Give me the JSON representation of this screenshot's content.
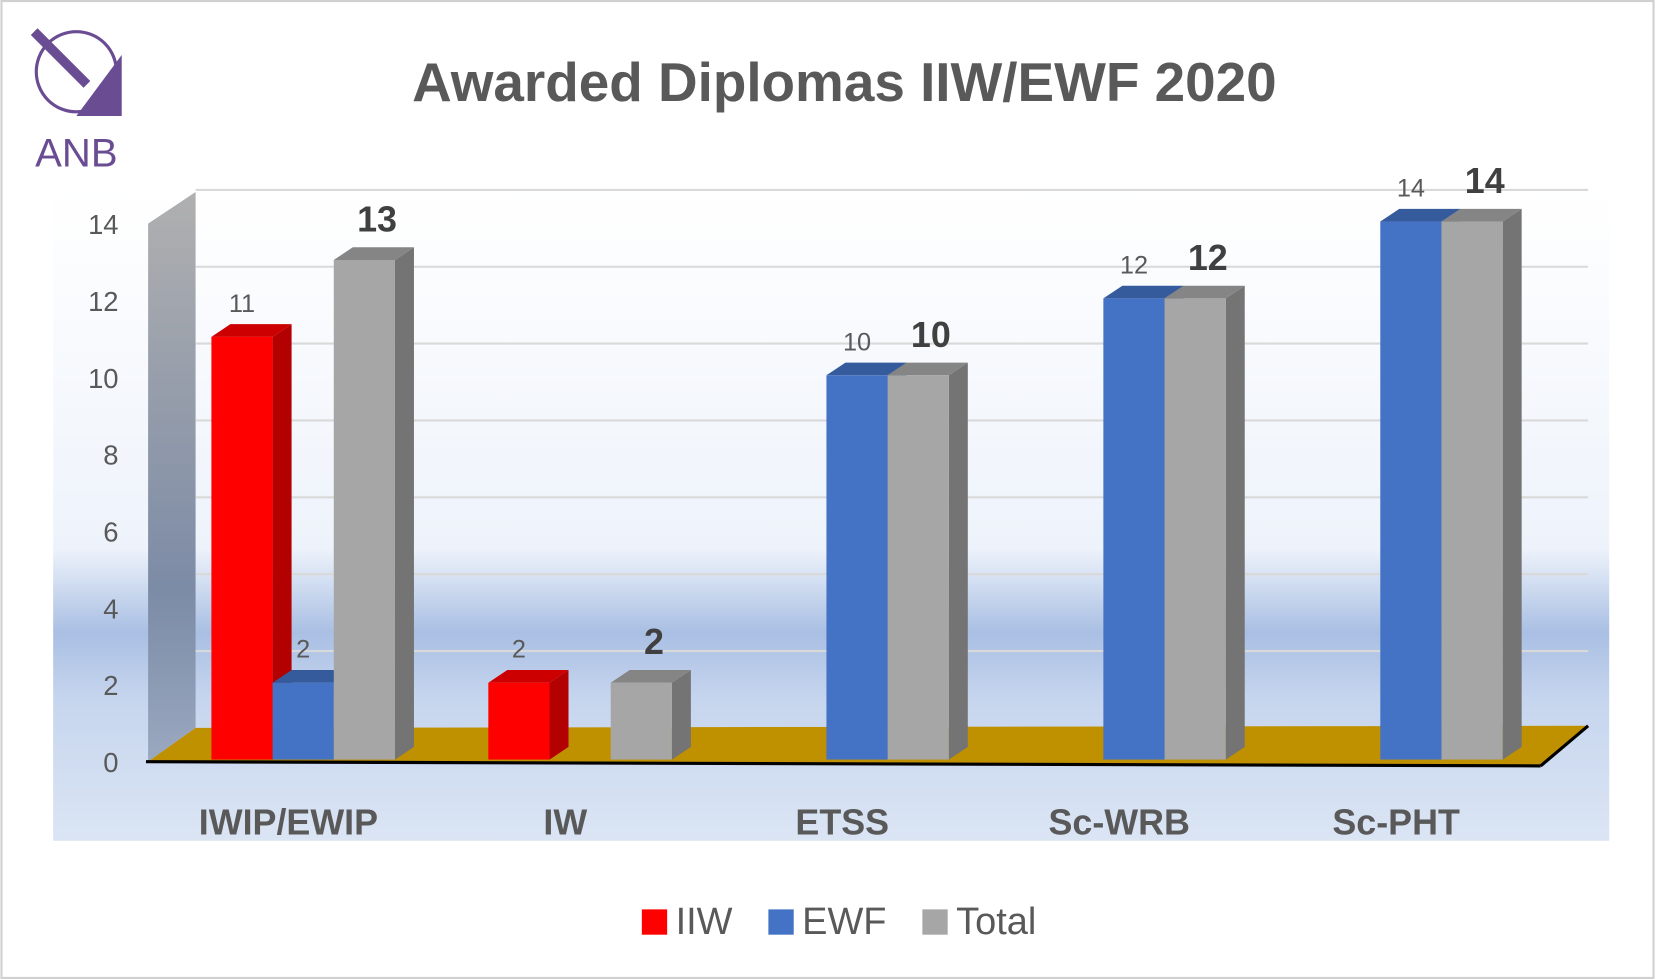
{
  "logo": "ANB",
  "chart_data": {
    "type": "bar3d",
    "title": "Awarded Diplomas IIW/EWF 2020",
    "categories": [
      "IWIP/EWIP",
      "IW",
      "ETSS",
      "Sc-WRB",
      "Sc-PHT"
    ],
    "series": [
      {
        "name": "IIW",
        "color": "#ff0000",
        "values": [
          11,
          2,
          null,
          null,
          null
        ]
      },
      {
        "name": "EWF",
        "color": "#4472c4",
        "values": [
          2,
          null,
          10,
          12,
          14
        ]
      },
      {
        "name": "Total",
        "color": "#a6a6a6",
        "values": [
          13,
          2,
          10,
          12,
          14
        ]
      }
    ],
    "ylim": [
      0,
      14
    ],
    "yticks": [
      0,
      2,
      4,
      6,
      8,
      10,
      12,
      14
    ],
    "grid": true,
    "legend": "bottom"
  }
}
